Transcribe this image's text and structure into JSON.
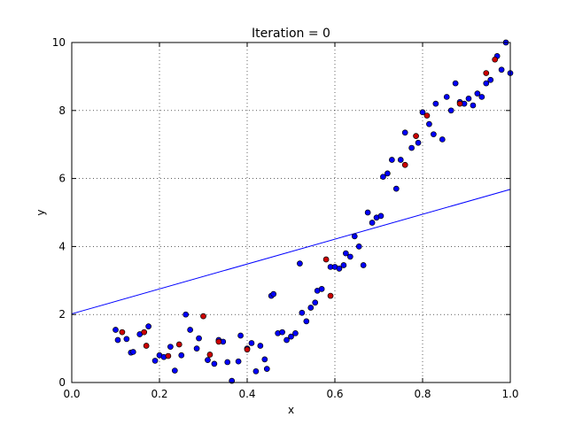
{
  "chart_data": {
    "type": "scatter",
    "title": "Iteration = 0",
    "xlabel": "x",
    "ylabel": "y",
    "xlim": [
      0.0,
      1.0
    ],
    "ylim": [
      0,
      10
    ],
    "x_ticks": [
      "0.0",
      "0.2",
      "0.4",
      "0.6",
      "0.8",
      "1.0"
    ],
    "y_ticks": [
      "0",
      "2",
      "4",
      "6",
      "8",
      "10"
    ],
    "grid": true,
    "series": [
      {
        "marker_color": "#0000ff",
        "points": [
          [
            0.1,
            1.55
          ],
          [
            0.105,
            1.25
          ],
          [
            0.125,
            1.28
          ],
          [
            0.135,
            0.88
          ],
          [
            0.14,
            0.9
          ],
          [
            0.155,
            1.42
          ],
          [
            0.175,
            1.65
          ],
          [
            0.19,
            0.64
          ],
          [
            0.2,
            0.8
          ],
          [
            0.21,
            0.75
          ],
          [
            0.225,
            1.05
          ],
          [
            0.235,
            0.35
          ],
          [
            0.25,
            0.8
          ],
          [
            0.26,
            2.0
          ],
          [
            0.27,
            1.55
          ],
          [
            0.285,
            1.0
          ],
          [
            0.29,
            1.3
          ],
          [
            0.31,
            0.66
          ],
          [
            0.325,
            0.55
          ],
          [
            0.335,
            1.25
          ],
          [
            0.345,
            1.2
          ],
          [
            0.355,
            0.6
          ],
          [
            0.365,
            0.05
          ],
          [
            0.38,
            0.62
          ],
          [
            0.385,
            1.38
          ],
          [
            0.4,
            1.0
          ],
          [
            0.41,
            1.16
          ],
          [
            0.42,
            0.33
          ],
          [
            0.43,
            1.08
          ],
          [
            0.44,
            0.68
          ],
          [
            0.445,
            0.4
          ],
          [
            0.455,
            2.55
          ],
          [
            0.46,
            2.6
          ],
          [
            0.47,
            1.45
          ],
          [
            0.48,
            1.48
          ],
          [
            0.49,
            1.25
          ],
          [
            0.5,
            1.35
          ],
          [
            0.51,
            1.45
          ],
          [
            0.52,
            3.5
          ],
          [
            0.525,
            2.05
          ],
          [
            0.535,
            1.8
          ],
          [
            0.545,
            2.2
          ],
          [
            0.555,
            2.35
          ],
          [
            0.56,
            2.7
          ],
          [
            0.57,
            2.75
          ],
          [
            0.59,
            3.4
          ],
          [
            0.6,
            3.4
          ],
          [
            0.61,
            3.35
          ],
          [
            0.62,
            3.45
          ],
          [
            0.625,
            3.8
          ],
          [
            0.635,
            3.7
          ],
          [
            0.645,
            4.3
          ],
          [
            0.655,
            4.0
          ],
          [
            0.665,
            3.45
          ],
          [
            0.675,
            5.0
          ],
          [
            0.685,
            4.7
          ],
          [
            0.695,
            4.85
          ],
          [
            0.705,
            4.9
          ],
          [
            0.71,
            6.05
          ],
          [
            0.72,
            6.15
          ],
          [
            0.73,
            6.55
          ],
          [
            0.74,
            5.7
          ],
          [
            0.75,
            6.55
          ],
          [
            0.76,
            7.35
          ],
          [
            0.775,
            6.9
          ],
          [
            0.79,
            7.05
          ],
          [
            0.8,
            7.95
          ],
          [
            0.815,
            7.6
          ],
          [
            0.825,
            7.3
          ],
          [
            0.83,
            8.2
          ],
          [
            0.845,
            7.15
          ],
          [
            0.855,
            8.4
          ],
          [
            0.865,
            8.0
          ],
          [
            0.875,
            8.8
          ],
          [
            0.885,
            8.25
          ],
          [
            0.895,
            8.2
          ],
          [
            0.905,
            8.35
          ],
          [
            0.915,
            8.15
          ],
          [
            0.925,
            8.5
          ],
          [
            0.935,
            8.4
          ],
          [
            0.945,
            8.8
          ],
          [
            0.955,
            8.9
          ],
          [
            0.97,
            9.6
          ],
          [
            0.98,
            9.2
          ],
          [
            0.99,
            10.0
          ],
          [
            1.0,
            9.1
          ]
        ]
      },
      {
        "marker_color": "#cc0000",
        "points": [
          [
            0.115,
            1.48
          ],
          [
            0.165,
            1.48
          ],
          [
            0.17,
            1.08
          ],
          [
            0.22,
            0.78
          ],
          [
            0.245,
            1.12
          ],
          [
            0.3,
            1.95
          ],
          [
            0.315,
            0.82
          ],
          [
            0.335,
            1.2
          ],
          [
            0.4,
            0.97
          ],
          [
            0.58,
            3.62
          ],
          [
            0.59,
            2.55
          ],
          [
            0.76,
            6.4
          ],
          [
            0.785,
            7.25
          ],
          [
            0.81,
            7.85
          ],
          [
            0.885,
            8.2
          ],
          [
            0.945,
            9.1
          ],
          [
            0.965,
            9.5
          ]
        ]
      }
    ],
    "line": {
      "color": "#0000ff",
      "x": [
        0.0,
        1.0
      ],
      "y": [
        2.02,
        5.68
      ]
    }
  }
}
